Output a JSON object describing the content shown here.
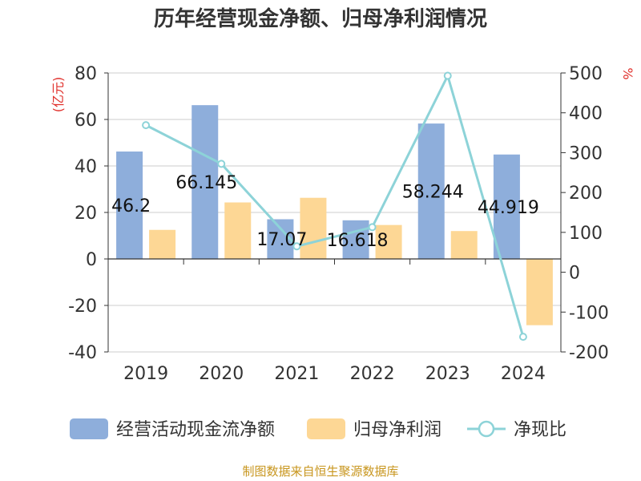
{
  "chart_data": {
    "type": "bar",
    "title": "历年经营现金净额、归母净利润情况",
    "categories": [
      "2019",
      "2020",
      "2021",
      "2022",
      "2023",
      "2024"
    ],
    "left_axis": {
      "unit": "(亿元)",
      "ylim": [
        -40,
        80
      ],
      "ticks": [
        "80",
        "60",
        "40",
        "20",
        "0",
        "-20",
        "-40"
      ]
    },
    "right_axis": {
      "unit": "%",
      "ylim": [
        -200,
        500
      ],
      "ticks": [
        "500",
        "400",
        "300",
        "200",
        "100",
        "0",
        "-100",
        "-200"
      ]
    },
    "series": [
      {
        "name": "经营活动现金流净额",
        "type": "bar",
        "axis": "left",
        "color": "#8eaedb",
        "values": [
          46.2,
          66.145,
          17.07,
          16.618,
          58.244,
          44.919
        ],
        "labels": [
          "46.2",
          "66.145",
          "17.07",
          "16.618",
          "58.244",
          "44.919"
        ]
      },
      {
        "name": "归母净利润",
        "type": "bar",
        "axis": "left",
        "color": "#fdd795",
        "values": [
          12.5,
          24.3,
          26.3,
          14.6,
          12.0,
          -28.5
        ]
      },
      {
        "name": "净现比",
        "type": "line",
        "axis": "right",
        "color": "#8dd3d8",
        "values": [
          369,
          272,
          65,
          113,
          493,
          -162
        ]
      }
    ],
    "grid": true,
    "legend_position": "bottom",
    "source": "制图数据来自恒生聚源数据库"
  }
}
